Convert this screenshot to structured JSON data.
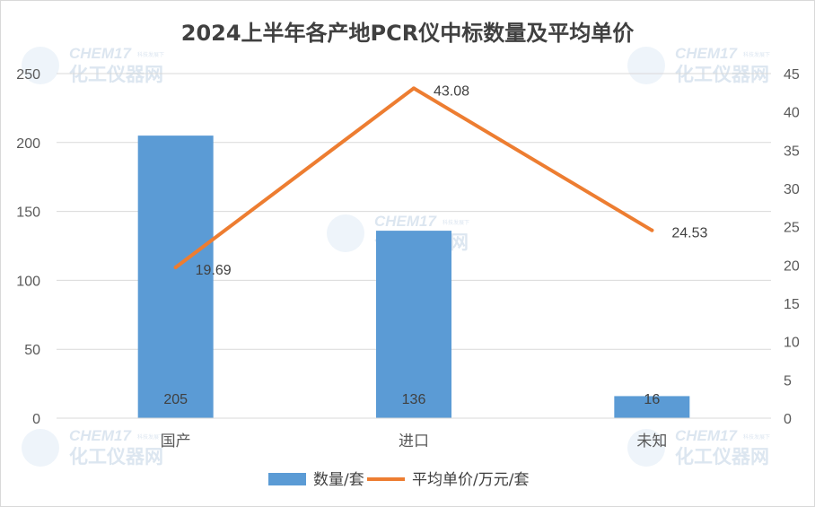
{
  "chart_data": {
    "type": "bar",
    "title": "2024上半年各产地PCR仪中标数量及平均单价",
    "categories": [
      "国产",
      "进口",
      "未知"
    ],
    "series": [
      {
        "name": "数量/套",
        "type": "bar",
        "axis": "left",
        "values": [
          205,
          136,
          16
        ],
        "color": "#5b9bd5"
      },
      {
        "name": "平均单价/万元/套",
        "type": "line",
        "axis": "right",
        "values": [
          19.69,
          43.08,
          24.53
        ],
        "color": "#ed7d31"
      }
    ],
    "y_left": {
      "ylim": [
        0,
        250
      ],
      "ticks": [
        0,
        50,
        100,
        150,
        200,
        250
      ]
    },
    "y_right": {
      "ylim": [
        0,
        45
      ],
      "ticks": [
        0,
        5,
        10,
        15,
        20,
        25,
        30,
        35,
        40,
        45
      ]
    },
    "bar_labels": [
      "205",
      "136",
      "16"
    ],
    "line_labels": [
      "19.69",
      "43.08",
      "24.53"
    ],
    "grid": true,
    "legend_position": "bottom"
  },
  "watermark": {
    "brand": "CHEM17",
    "name": "化工仪器网",
    "tagline": "科技发展下"
  }
}
